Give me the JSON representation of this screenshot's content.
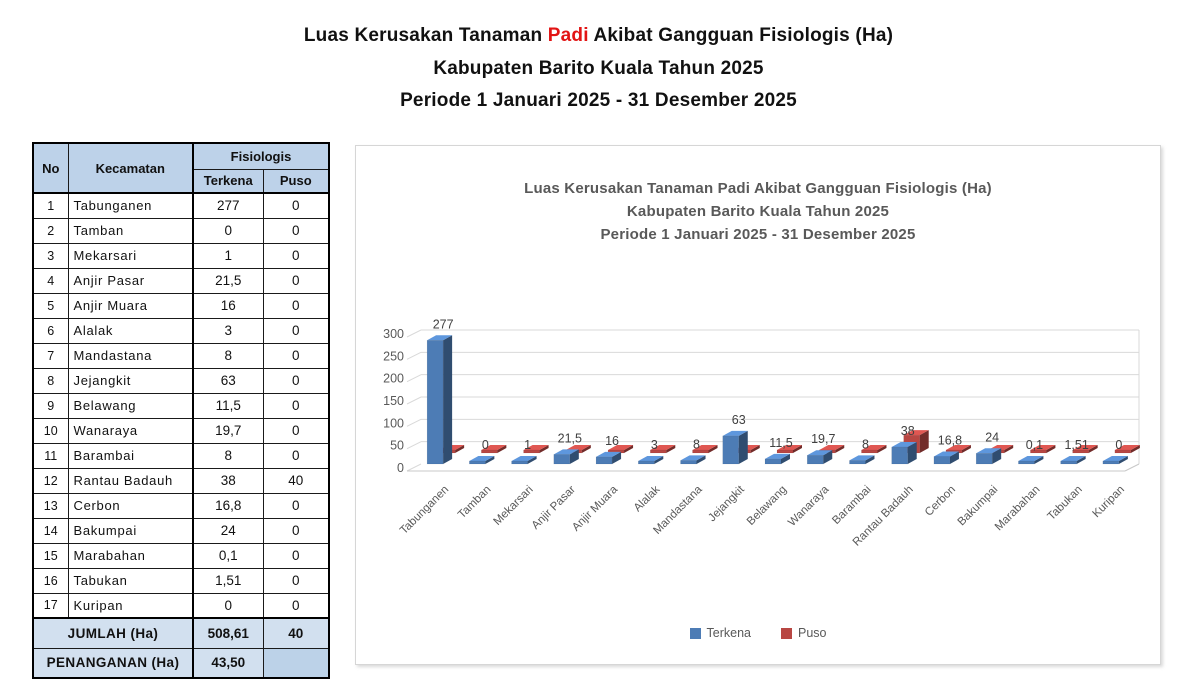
{
  "page_title": {
    "line1_prefix": "Luas Kerusakan Tanaman ",
    "line1_highlight": "Padi",
    "line1_suffix": " Akibat Gangguan Fisiologis  (Ha)",
    "line2": "Kabupaten Barito Kuala Tahun 2025",
    "line3": "Periode 1 Januari 2025 - 31 Desember 2025",
    "highlight_color": "#e21414"
  },
  "table": {
    "headers": {
      "no": "No",
      "kecamatan": "Kecamatan",
      "group": "Fisiologis",
      "col_terkena": "Terkena",
      "col_puso": "Puso"
    },
    "rows": [
      {
        "no": "1",
        "kecamatan": "Tabunganen",
        "terkena": "277",
        "puso": "0"
      },
      {
        "no": "2",
        "kecamatan": "Tamban",
        "terkena": "0",
        "puso": "0"
      },
      {
        "no": "3",
        "kecamatan": "Mekarsari",
        "terkena": "1",
        "puso": "0"
      },
      {
        "no": "4",
        "kecamatan": "Anjir Pasar",
        "terkena": "21,5",
        "puso": "0"
      },
      {
        "no": "5",
        "kecamatan": "Anjir Muara",
        "terkena": "16",
        "puso": "0"
      },
      {
        "no": "6",
        "kecamatan": "Alalak",
        "terkena": "3",
        "puso": "0"
      },
      {
        "no": "7",
        "kecamatan": "Mandastana",
        "terkena": "8",
        "puso": "0"
      },
      {
        "no": "8",
        "kecamatan": "Jejangkit",
        "terkena": "63",
        "puso": "0"
      },
      {
        "no": "9",
        "kecamatan": "Belawang",
        "terkena": "11,5",
        "puso": "0"
      },
      {
        "no": "10",
        "kecamatan": "Wanaraya",
        "terkena": "19,7",
        "puso": "0"
      },
      {
        "no": "11",
        "kecamatan": "Barambai",
        "terkena": "8",
        "puso": "0"
      },
      {
        "no": "12",
        "kecamatan": "Rantau Badauh",
        "terkena": "38",
        "puso": "40"
      },
      {
        "no": "13",
        "kecamatan": "Cerbon",
        "terkena": "16,8",
        "puso": "0"
      },
      {
        "no": "14",
        "kecamatan": "Bakumpai",
        "terkena": "24",
        "puso": "0"
      },
      {
        "no": "15",
        "kecamatan": "Marabahan",
        "terkena": "0,1",
        "puso": "0"
      },
      {
        "no": "16",
        "kecamatan": "Tabukan",
        "terkena": "1,51",
        "puso": "0"
      },
      {
        "no": "17",
        "kecamatan": "Kuripan",
        "terkena": "0",
        "puso": "0"
      }
    ],
    "footer": [
      {
        "label": "JUMLAH (Ha)",
        "terkena": "508,61",
        "puso": "40"
      },
      {
        "label": "PENANGANAN (Ha)",
        "terkena": "43,50",
        "puso": ""
      }
    ]
  },
  "chart": {
    "title_lines": [
      "Luas Kerusakan Tanaman Padi Akibat Gangguan Fisiologis (Ha)",
      "Kabupaten Barito Kuala Tahun 2025",
      "Periode 1 Januari 2025 - 31 Desember 2025"
    ],
    "legend": [
      {
        "label": "Terkena",
        "color": "#4d7cb5"
      },
      {
        "label": "Puso",
        "color": "#b84743"
      }
    ]
  },
  "chart_data": {
    "type": "bar",
    "variant": "3d-clustered-column",
    "title": "Luas Kerusakan Tanaman Padi Akibat Gangguan Fisiologis (Ha) Kabupaten Barito Kuala Tahun 2025 Periode 1 Januari 2025 - 31 Desember 2025",
    "categories": [
      "Tabunganen",
      "Tamban",
      "Mekarsari",
      "Anjir Pasar",
      "Anjir Muara",
      "Alalak",
      "Mandastana",
      "Jejangkit",
      "Belawang",
      "Wanaraya",
      "Barambai",
      "Rantau Badauh",
      "Cerbon",
      "Bakumpai",
      "Marabahan",
      "Tabukan",
      "Kuripan"
    ],
    "series": [
      {
        "name": "Terkena",
        "color": "#4d7cb5",
        "values": [
          277,
          0,
          1,
          21.5,
          16,
          3,
          8,
          63,
          11.5,
          19.7,
          8,
          38,
          16.8,
          24,
          0.1,
          1.51,
          0
        ],
        "labels": [
          "277",
          "0",
          "1",
          "21,5",
          "16",
          "3",
          "8",
          "63",
          "11,5",
          "19,7",
          "8",
          "38",
          "16,8",
          "24",
          "0,1",
          "1,51",
          "0"
        ]
      },
      {
        "name": "Puso",
        "color": "#b84743",
        "values": [
          0,
          0,
          0,
          0,
          0,
          0,
          0,
          0,
          0,
          0,
          0,
          40,
          0,
          0,
          0,
          0,
          0
        ]
      }
    ],
    "xlabel": "",
    "ylabel": "",
    "ylim": [
      0,
      300
    ],
    "yticks": [
      0,
      50,
      100,
      150,
      200,
      250,
      300
    ],
    "grid": true,
    "legend_position": "bottom",
    "data_labels": "Terkena series only, decimal comma format",
    "tick_label_color": "#595959",
    "data_label_color": "#404040",
    "gridline_color": "#d9d9d9"
  }
}
